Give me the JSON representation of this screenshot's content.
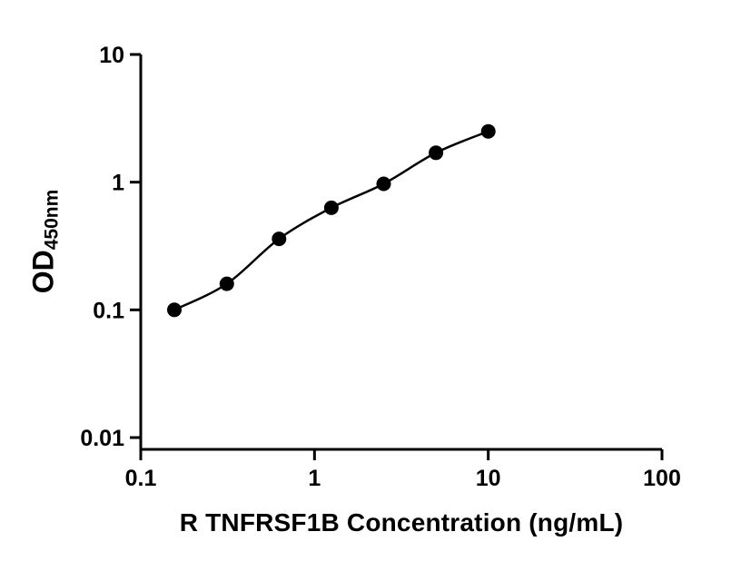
{
  "chart_data": {
    "type": "scatter",
    "title": "",
    "xlabel": "R TNFRSF1B Concentration (ng/mL)",
    "ylabel_main": "OD",
    "ylabel_sub": "450nm",
    "xscale": "log",
    "yscale": "log",
    "xlim": [
      0.1,
      100
    ],
    "ylim": [
      0.01,
      10
    ],
    "x_ticks": [
      "0.1",
      "1",
      "10",
      "100"
    ],
    "y_ticks": [
      "10",
      "1",
      "0.1",
      "0.01"
    ],
    "x": [
      0.156,
      0.313,
      0.625,
      1.25,
      2.5,
      5,
      10
    ],
    "y": [
      0.1,
      0.16,
      0.36,
      0.63,
      0.97,
      1.7,
      2.5
    ],
    "grid": "off",
    "legend": "none",
    "marker_color": "#000000",
    "line_color": "#000000",
    "background_color": "#ffffff"
  }
}
